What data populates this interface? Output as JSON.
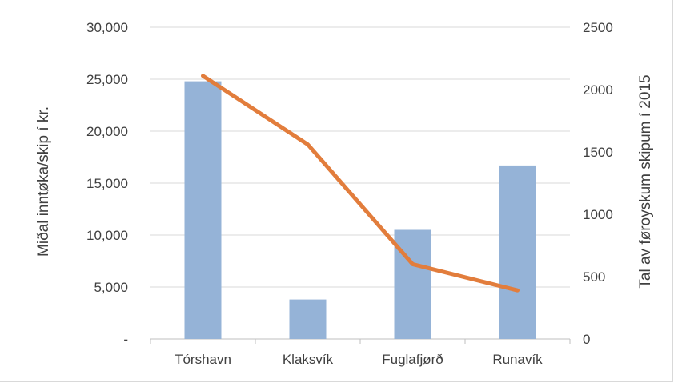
{
  "chart_data": {
    "type": "bar",
    "categories": [
      "Tórshavn",
      "Klaksvík",
      "Fuglafjørð",
      "Runavík"
    ],
    "series": [
      {
        "axis": "left",
        "mark": "bar",
        "color": "#95b3d7",
        "values": [
          24800,
          3800,
          10500,
          16700
        ]
      },
      {
        "axis": "right",
        "mark": "line",
        "color": "#e27d3c",
        "values": [
          2110,
          1560,
          600,
          390
        ]
      }
    ],
    "ylabel": "Miðal inntøka/skip í kr.",
    "y2label": "Tal av føroyskum skipum í 2015",
    "ylim": [
      0,
      30000
    ],
    "y2lim": [
      0,
      2500
    ],
    "yticks": [
      "-",
      "5,000",
      "10,000",
      "15,000",
      "20,000",
      "25,000",
      "30,000"
    ],
    "y2ticks": [
      "0",
      "500",
      "1000",
      "1500",
      "2000",
      "2500"
    ],
    "grid": true,
    "legend": "none"
  }
}
